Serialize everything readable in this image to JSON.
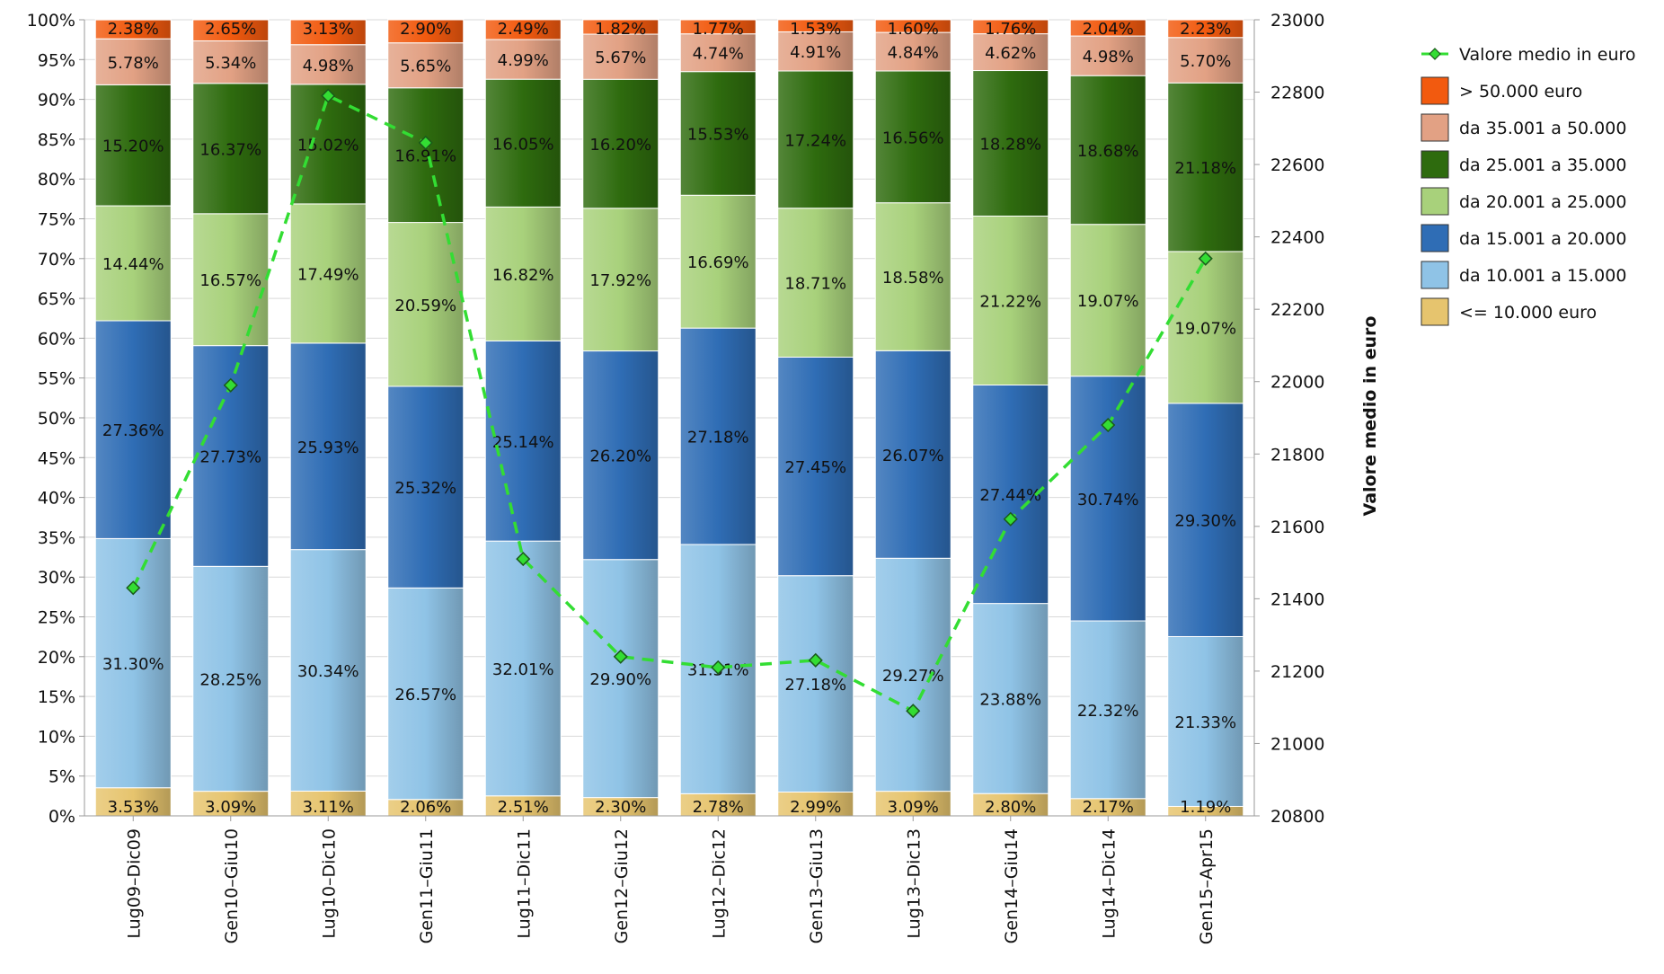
{
  "chart_data": {
    "type": "bar",
    "subtype": "stacked-100-percent-with-line-overlay",
    "categories": [
      "Lug09–Dic09",
      "Gen10–Giu10",
      "Lug10–Dic10",
      "Gen11–Giu11",
      "Lug11–Dic11",
      "Gen12–Giu12",
      "Lug12–Dic12",
      "Gen13–Giu13",
      "Lug13–Dic13",
      "Gen14–Giu14",
      "Lug14–Dic14",
      "Gen15–Apr15"
    ],
    "series": [
      {
        "name": "<= 10.000 euro",
        "color": "#e6c46e",
        "values": [
          3.53,
          3.09,
          3.11,
          2.06,
          2.51,
          2.3,
          2.78,
          2.99,
          3.09,
          2.8,
          2.17,
          1.19
        ],
        "labels": [
          "3.53%",
          "3.09%",
          "3.11%",
          "2.06%",
          "2.51%",
          "2.30%",
          "2.78%",
          "2.99%",
          "3.09%",
          "2.80%",
          "2.17%",
          "1.19%"
        ]
      },
      {
        "name": "da 10.001 a 15.000",
        "color": "#8fc3e6",
        "values": [
          31.3,
          28.25,
          30.34,
          26.57,
          32.01,
          29.9,
          31.31,
          27.18,
          29.27,
          23.88,
          22.32,
          21.33
        ],
        "labels": [
          "31.30%",
          "28.25%",
          "30.34%",
          "26.57%",
          "32.01%",
          "29.90%",
          "31.31%",
          "27.18%",
          "29.27%",
          "23.88%",
          "22.32%",
          "21.33%"
        ]
      },
      {
        "name": "da 15.001 a 20.000",
        "color": "#2f6db5",
        "values": [
          27.36,
          27.73,
          25.93,
          25.32,
          25.14,
          26.2,
          27.18,
          27.45,
          26.07,
          27.44,
          30.74,
          29.3
        ],
        "labels": [
          "27.36%",
          "27.73%",
          "25.93%",
          "25.32%",
          "25.14%",
          "26.20%",
          "27.18%",
          "27.45%",
          "26.07%",
          "27.44%",
          "30.74%",
          "29.30%"
        ]
      },
      {
        "name": "da 20.001 a 25.000",
        "color": "#a8d17b",
        "values": [
          14.44,
          16.57,
          17.49,
          20.59,
          16.82,
          17.92,
          16.69,
          18.71,
          18.58,
          21.22,
          19.07,
          19.07
        ],
        "labels": [
          "14.44%",
          "16.57%",
          "17.49%",
          "20.59%",
          "16.82%",
          "17.92%",
          "16.69%",
          "18.71%",
          "18.58%",
          "21.22%",
          "19.07%",
          "19.07%"
        ]
      },
      {
        "name": "da 25.001 a 35.000",
        "color": "#2e6b0e",
        "values": [
          15.2,
          16.37,
          15.02,
          16.91,
          16.05,
          16.2,
          15.53,
          17.24,
          16.56,
          18.28,
          18.68,
          21.18
        ],
        "labels": [
          "15.20%",
          "16.37%",
          "15.02%",
          "16.91%",
          "16.05%",
          "16.20%",
          "15.53%",
          "17.24%",
          "16.56%",
          "18.28%",
          "18.68%",
          "21.18%"
        ]
      },
      {
        "name": "da 35.001 a 50.000",
        "color": "#e2a184",
        "values": [
          5.78,
          5.34,
          4.98,
          5.65,
          4.99,
          5.67,
          4.74,
          4.91,
          4.84,
          4.62,
          4.98,
          5.7
        ],
        "labels": [
          "5.78%",
          "5.34%",
          "4.98%",
          "5.65%",
          "4.99%",
          "5.67%",
          "4.74%",
          "4.91%",
          "4.84%",
          "4.62%",
          "4.98%",
          "5.70%"
        ]
      },
      {
        "name": "> 50.000 euro",
        "color": "#f25a0f",
        "values": [
          2.38,
          2.65,
          3.13,
          2.9,
          2.49,
          1.82,
          1.77,
          1.53,
          1.6,
          1.76,
          2.04,
          2.23
        ],
        "labels": [
          "2.38%",
          "2.65%",
          "3.13%",
          "2.90%",
          "2.49%",
          "1.82%",
          "1.77%",
          "1.53%",
          "1.60%",
          "1.76%",
          "2.04%",
          "2.23%"
        ]
      }
    ],
    "line_series": {
      "name": "Valore medio in euro",
      "color": "#33dd33",
      "style": "dashed",
      "marker": "diamond",
      "axis": "right",
      "values": [
        21430,
        21990,
        22790,
        22660,
        21510,
        21240,
        21210,
        21230,
        21090,
        21620,
        21880,
        22340
      ]
    },
    "y_left": {
      "ylim": [
        0,
        100
      ],
      "step": 5,
      "tick_labels": [
        "0%",
        "5%",
        "10%",
        "15%",
        "20%",
        "25%",
        "30%",
        "35%",
        "40%",
        "45%",
        "50%",
        "55%",
        "60%",
        "65%",
        "70%",
        "75%",
        "80%",
        "85%",
        "90%",
        "95%",
        "100%"
      ]
    },
    "y_right": {
      "ylim": [
        20800,
        23000
      ],
      "step": 200,
      "label": "Valore medio in euro",
      "tick_labels": [
        "20800",
        "21000",
        "21200",
        "21400",
        "21600",
        "21800",
        "22000",
        "22200",
        "22400",
        "22600",
        "22800",
        "23000"
      ]
    },
    "legend": {
      "placement": "right",
      "entries": [
        "Valore medio in euro",
        "> 50.000 euro",
        "da 35.001 a 50.000",
        "da 25.001 a 35.000",
        "da 20.001 a 25.000",
        "da 15.001 a 20.000",
        "da 10.001 a 15.000",
        "<= 10.000 euro"
      ]
    },
    "grid": true,
    "title": "",
    "xlabel": "",
    "ylabel": ""
  }
}
